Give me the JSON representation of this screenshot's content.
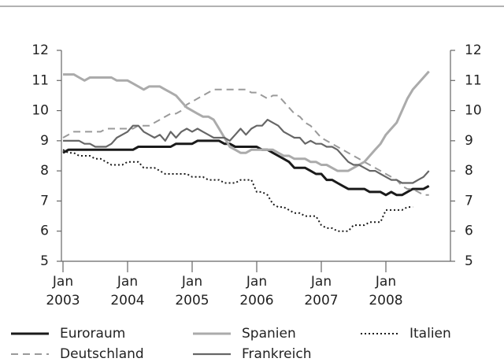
{
  "chart_data": {
    "type": "line",
    "x": [
      "2003-01",
      "2003-02",
      "2003-03",
      "2003-04",
      "2003-05",
      "2003-06",
      "2003-07",
      "2003-08",
      "2003-09",
      "2003-10",
      "2003-11",
      "2003-12",
      "2004-01",
      "2004-02",
      "2004-03",
      "2004-04",
      "2004-05",
      "2004-06",
      "2004-07",
      "2004-08",
      "2004-09",
      "2004-10",
      "2004-11",
      "2004-12",
      "2005-01",
      "2005-02",
      "2005-03",
      "2005-04",
      "2005-05",
      "2005-06",
      "2005-07",
      "2005-08",
      "2005-09",
      "2005-10",
      "2005-11",
      "2005-12",
      "2006-01",
      "2006-02",
      "2006-03",
      "2006-04",
      "2006-05",
      "2006-06",
      "2006-07",
      "2006-08",
      "2006-09",
      "2006-10",
      "2006-11",
      "2006-12",
      "2007-01",
      "2007-02",
      "2007-03",
      "2007-04",
      "2007-05",
      "2007-06",
      "2007-07",
      "2007-08",
      "2007-09",
      "2007-10",
      "2007-11",
      "2007-12",
      "2008-01",
      "2008-02",
      "2008-03",
      "2008-04",
      "2008-05",
      "2008-06",
      "2008-07",
      "2008-08",
      "2008-09"
    ],
    "series": [
      {
        "name": "Euroraum",
        "color": "#1a1a1a",
        "width": 3,
        "dash": "solid",
        "values": [
          8.6,
          8.7,
          8.7,
          8.7,
          8.7,
          8.7,
          8.7,
          8.7,
          8.7,
          8.7,
          8.7,
          8.7,
          8.7,
          8.7,
          8.8,
          8.8,
          8.8,
          8.8,
          8.8,
          8.8,
          8.8,
          8.9,
          8.9,
          8.9,
          8.9,
          9.0,
          9.0,
          9.0,
          9.0,
          9.0,
          8.9,
          8.9,
          8.8,
          8.8,
          8.8,
          8.8,
          8.8,
          8.7,
          8.7,
          8.6,
          8.5,
          8.4,
          8.3,
          8.1,
          8.1,
          8.1,
          8.0,
          7.9,
          7.9,
          7.7,
          7.7,
          7.6,
          7.5,
          7.4,
          7.4,
          7.4,
          7.4,
          7.3,
          7.3,
          7.3,
          7.2,
          7.3,
          7.2,
          7.2,
          7.3,
          7.4,
          7.4,
          7.4,
          7.5
        ]
      },
      {
        "name": "Deutschland",
        "color": "#9a9a9a",
        "width": 2,
        "dash": "dashed",
        "values": [
          9.1,
          9.2,
          9.3,
          9.3,
          9.3,
          9.3,
          9.3,
          9.3,
          9.4,
          9.4,
          9.4,
          9.4,
          9.4,
          9.4,
          9.5,
          9.5,
          9.5,
          9.6,
          9.7,
          9.8,
          9.9,
          9.9,
          10.0,
          10.2,
          10.3,
          10.4,
          10.5,
          10.6,
          10.7,
          10.7,
          10.7,
          10.7,
          10.7,
          10.7,
          10.7,
          10.6,
          10.6,
          10.5,
          10.4,
          10.5,
          10.5,
          10.3,
          10.1,
          9.9,
          9.8,
          9.6,
          9.5,
          9.3,
          9.1,
          9.0,
          8.9,
          8.8,
          8.7,
          8.6,
          8.5,
          8.4,
          8.3,
          8.2,
          8.1,
          8.0,
          7.9,
          7.8,
          7.7,
          7.5,
          7.4,
          7.4,
          7.3,
          7.2,
          7.2
        ]
      },
      {
        "name": "Spanien",
        "color": "#ababab",
        "width": 3,
        "dash": "solid",
        "values": [
          11.2,
          11.2,
          11.2,
          11.1,
          11.0,
          11.1,
          11.1,
          11.1,
          11.1,
          11.1,
          11.0,
          11.0,
          11.0,
          10.9,
          10.8,
          10.7,
          10.8,
          10.8,
          10.8,
          10.7,
          10.6,
          10.5,
          10.3,
          10.1,
          10.0,
          9.9,
          9.8,
          9.8,
          9.7,
          9.4,
          9.1,
          8.8,
          8.7,
          8.6,
          8.6,
          8.7,
          8.7,
          8.7,
          8.7,
          8.7,
          8.6,
          8.5,
          8.5,
          8.4,
          8.4,
          8.4,
          8.3,
          8.3,
          8.2,
          8.2,
          8.1,
          8.0,
          8.0,
          8.0,
          8.1,
          8.2,
          8.3,
          8.5,
          8.7,
          8.9,
          9.2,
          9.4,
          9.6,
          10.0,
          10.4,
          10.7,
          10.9,
          11.1,
          11.3
        ]
      },
      {
        "name": "Frankreich",
        "color": "#666666",
        "width": 2.2,
        "dash": "solid",
        "values": [
          9.0,
          9.0,
          9.0,
          9.0,
          8.9,
          8.9,
          8.8,
          8.8,
          8.8,
          8.9,
          9.1,
          9.2,
          9.3,
          9.5,
          9.5,
          9.3,
          9.2,
          9.1,
          9.2,
          9.0,
          9.3,
          9.1,
          9.3,
          9.4,
          9.3,
          9.4,
          9.3,
          9.2,
          9.1,
          9.1,
          9.1,
          9.0,
          9.2,
          9.4,
          9.2,
          9.4,
          9.5,
          9.5,
          9.7,
          9.6,
          9.5,
          9.3,
          9.2,
          9.1,
          9.1,
          8.9,
          9.0,
          8.9,
          8.9,
          8.8,
          8.8,
          8.7,
          8.5,
          8.3,
          8.2,
          8.2,
          8.1,
          8.0,
          8.0,
          7.9,
          7.8,
          7.7,
          7.7,
          7.6,
          7.6,
          7.6,
          7.7,
          7.8,
          8.0
        ]
      },
      {
        "name": "Italien",
        "color": "#1a1a1a",
        "width": 2,
        "dash": "dotted",
        "values": [
          8.7,
          8.6,
          8.6,
          8.5,
          8.5,
          8.5,
          8.4,
          8.4,
          8.3,
          8.2,
          8.2,
          8.2,
          8.3,
          8.3,
          8.3,
          8.1,
          8.1,
          8.1,
          8.0,
          7.9,
          7.9,
          7.9,
          7.9,
          7.9,
          7.8,
          7.8,
          7.8,
          7.7,
          7.7,
          7.7,
          7.6,
          7.6,
          7.6,
          7.7,
          7.7,
          7.7,
          7.3,
          7.3,
          7.2,
          6.9,
          6.8,
          6.8,
          6.7,
          6.6,
          6.6,
          6.5,
          6.5,
          6.5,
          6.2,
          6.1,
          6.1,
          6.0,
          6.0,
          6.0,
          6.2,
          6.2,
          6.2,
          6.3,
          6.3,
          6.3,
          6.7,
          6.7,
          6.7,
          6.7,
          6.8,
          6.8,
          null,
          null,
          null
        ]
      }
    ],
    "xlim": [
      "2003-01",
      "2009-01"
    ],
    "xticks": [
      {
        "value": "2003-01",
        "label": [
          "Jan",
          "2003"
        ]
      },
      {
        "value": "2004-01",
        "label": [
          "Jan",
          "2004"
        ]
      },
      {
        "value": "2005-01",
        "label": [
          "Jan",
          "2005"
        ]
      },
      {
        "value": "2006-01",
        "label": [
          "Jan",
          "2006"
        ]
      },
      {
        "value": "2007-01",
        "label": [
          "Jan",
          "2007"
        ]
      },
      {
        "value": "2008-01",
        "label": [
          "Jan",
          "2008"
        ]
      }
    ],
    "ylim": [
      5,
      12
    ],
    "yticks": [
      5,
      6,
      7,
      8,
      9,
      10,
      11,
      12
    ],
    "y2lim": [
      5,
      12
    ],
    "y2ticks": [
      5,
      6,
      7,
      8,
      9,
      10,
      11,
      12
    ]
  }
}
